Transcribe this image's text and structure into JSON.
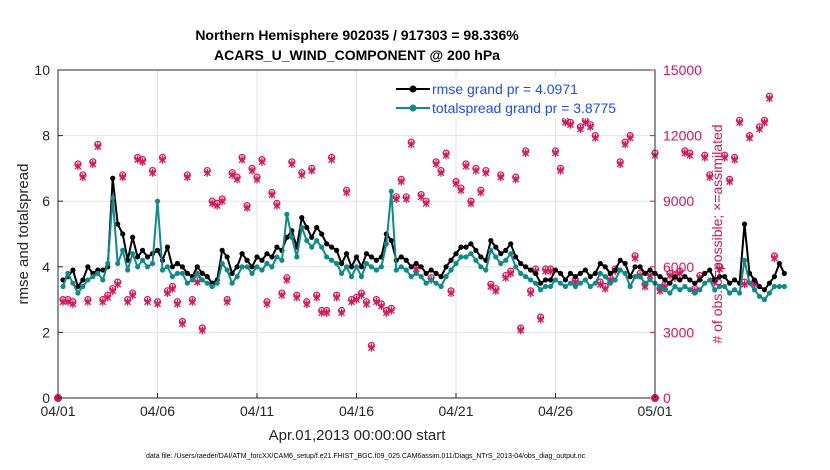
{
  "chart_data": {
    "type": "line",
    "title_line1": "Northern Hemisphere 902035 / 917303 = 98.336%",
    "title_line2": "ACARS_U_WIND_COMPONENT @ 200 hPa",
    "xlabel": "Apr.01,2013 00:00:00 start",
    "ylabel_left": "rmse and totalspread",
    "ylabel_right": "# of obs: o=possible; ×=assimilated",
    "footer": "data file: /Users/raeder/DAI/ATM_forcXX/CAM6_setup/f.e21.FHIST_BGC.f09_025.CAM6assim.011/Diags_NTrS_2013-04/obs_diag_output.nc",
    "xlim": [
      0,
      30
    ],
    "ylim_left": [
      0,
      10
    ],
    "ylim_right": [
      0,
      15000
    ],
    "x_ticks": [
      0,
      5,
      10,
      15,
      20,
      25,
      30
    ],
    "x_tick_labels": [
      "04/01",
      "04/06",
      "04/11",
      "04/16",
      "04/21",
      "04/26",
      "05/01"
    ],
    "y_left_ticks": [
      "0",
      "2",
      "4",
      "6",
      "8",
      "10"
    ],
    "y_left_tick_values": [
      0,
      2,
      4,
      6,
      8,
      10
    ],
    "y_right_ticks": [
      "0",
      "3000",
      "6000",
      "9000",
      "12000",
      "15000"
    ],
    "y_right_tick_values": [
      0,
      3000,
      6000,
      9000,
      12000,
      15000
    ],
    "legend": [
      {
        "name": "rmse grand pr = 4.0971",
        "color": "#000000"
      },
      {
        "name": "totalspread grand pr = 3.8775",
        "color": "#0f8a8a"
      }
    ],
    "x_step_days": 0.25,
    "x_start_day": 0.25,
    "series": [
      {
        "name": "rmse",
        "color": "#000000",
        "axis": "left",
        "values": [
          3.6,
          3.7,
          3.9,
          3.4,
          3.6,
          4.0,
          3.8,
          3.9,
          3.9,
          4.0,
          6.7,
          5.3,
          5.0,
          4.2,
          4.9,
          4.3,
          4.5,
          4.3,
          4.4,
          4.5,
          4.2,
          4.6,
          4.0,
          4.1,
          4.0,
          3.8,
          3.7,
          4.0,
          3.8,
          3.7,
          3.5,
          3.6,
          4.5,
          4.3,
          3.8,
          4.0,
          4.4,
          4.2,
          4.0,
          4.3,
          4.2,
          4.4,
          4.3,
          4.6,
          4.5,
          4.9,
          5.1,
          4.6,
          5.5,
          5.2,
          4.9,
          5.2,
          5.0,
          4.7,
          4.6,
          4.5,
          4.1,
          4.4,
          4.0,
          4.3,
          4.0,
          4.4,
          4.3,
          4.2,
          4.3,
          5.0,
          4.8,
          4.2,
          4.3,
          4.2,
          4.0,
          4.1,
          4.0,
          3.8,
          3.9,
          3.8,
          3.7,
          4.0,
          4.2,
          4.4,
          4.6,
          4.6,
          4.7,
          4.5,
          4.3,
          4.2,
          4.8,
          4.6,
          4.4,
          4.5,
          4.7,
          4.3,
          4.1,
          4.0,
          3.9,
          3.8,
          3.5,
          3.6,
          3.6,
          3.9,
          3.8,
          3.6,
          3.8,
          3.7,
          3.8,
          3.9,
          3.7,
          3.8,
          4.1,
          4.0,
          3.8,
          3.9,
          4.2,
          4.1,
          3.7,
          4.0,
          4.0,
          3.8,
          3.9,
          3.8,
          3.7,
          3.6,
          3.5,
          3.7,
          3.6,
          3.7,
          3.6,
          3.5,
          3.6,
          3.8,
          3.9,
          3.6,
          3.7,
          3.7,
          3.5,
          3.6,
          3.5,
          5.3,
          3.8,
          3.6,
          3.4,
          3.3,
          3.5,
          3.7,
          4.1,
          3.8
        ]
      },
      {
        "name": "totalspread",
        "color": "#0f8a8a",
        "axis": "left",
        "values": [
          3.4,
          3.8,
          3.5,
          3.2,
          3.4,
          3.6,
          3.7,
          3.8,
          3.6,
          4.1,
          6.1,
          4.1,
          4.5,
          3.9,
          4.4,
          4.0,
          4.2,
          4.0,
          4.1,
          6.0,
          3.9,
          4.0,
          3.7,
          3.8,
          3.8,
          3.5,
          3.6,
          3.8,
          3.6,
          3.5,
          3.4,
          3.5,
          4.1,
          3.9,
          3.5,
          3.7,
          4.0,
          4.0,
          3.8,
          4.0,
          3.9,
          4.1,
          4.0,
          4.3,
          4.2,
          5.6,
          4.9,
          4.3,
          5.2,
          4.8,
          4.6,
          4.8,
          4.6,
          4.3,
          4.2,
          4.1,
          3.8,
          4.0,
          3.7,
          4.0,
          3.7,
          4.1,
          4.0,
          3.9,
          4.0,
          4.7,
          6.3,
          3.9,
          4.0,
          3.9,
          3.7,
          3.8,
          3.7,
          3.5,
          3.6,
          3.5,
          3.4,
          3.7,
          3.9,
          4.1,
          4.3,
          4.3,
          4.4,
          4.2,
          4.0,
          3.9,
          4.5,
          4.3,
          4.1,
          4.2,
          4.4,
          4.0,
          3.8,
          3.7,
          3.6,
          3.5,
          3.3,
          3.4,
          3.4,
          3.6,
          3.5,
          3.4,
          3.5,
          3.4,
          3.5,
          3.6,
          3.4,
          3.5,
          3.8,
          3.7,
          3.5,
          3.6,
          3.9,
          3.8,
          3.4,
          3.7,
          3.7,
          3.5,
          3.6,
          3.5,
          3.4,
          3.3,
          3.2,
          3.4,
          3.3,
          3.4,
          3.3,
          3.2,
          3.3,
          3.5,
          3.6,
          3.3,
          3.4,
          3.4,
          3.2,
          3.3,
          3.2,
          4.2,
          3.5,
          3.3,
          3.1,
          3.0,
          3.2,
          3.4,
          3.4,
          3.4
        ]
      },
      {
        "name": "possible obs",
        "color": "#d4145a",
        "axis": "right",
        "marker": "o",
        "values": [
          4500,
          4500,
          4400,
          10700,
          10200,
          4500,
          10800,
          11600,
          4500,
          4700,
          5000,
          5300,
          10200,
          4500,
          4800,
          11000,
          10900,
          4500,
          10400,
          4400,
          11000,
          4900,
          5100,
          4400,
          3500,
          10200,
          4500,
          5400,
          3200,
          10400,
          9000,
          8900,
          9100,
          4500,
          10300,
          10100,
          11000,
          8800,
          10500,
          10100,
          10900,
          4400,
          9400,
          8900,
          4800,
          5500,
          10800,
          4700,
          10300,
          4400,
          10500,
          4700,
          4000,
          4000,
          11000,
          4700,
          4000,
          9500,
          4500,
          4600,
          4800,
          4400,
          2400,
          4500,
          4300,
          4000,
          4100,
          9200,
          10000,
          9200,
          11700,
          6000,
          9300,
          9000,
          5500,
          10800,
          10400,
          11200,
          4900,
          9900,
          9600,
          10700,
          9000,
          10500,
          9500,
          10400,
          5200,
          5000,
          10200,
          5600,
          5800,
          10100,
          3200,
          11300,
          4900,
          5900,
          3700,
          5900,
          5900,
          11300,
          10500,
          12700,
          12600,
          5400,
          12400,
          12700,
          12500,
          12000,
          5300,
          5100,
          5500,
          5900,
          10800,
          11700,
          12000,
          6500,
          5700,
          5200,
          5700,
          11200,
          5000,
          5200,
          5700,
          5600,
          5800,
          11300,
          11200,
          5000,
          5600,
          11100,
          10200,
          5400,
          6000,
          11100,
          10000,
          11000,
          12700,
          5300,
          12000,
          5300,
          12400,
          12700,
          13800,
          6500
        ]
      },
      {
        "name": "assimilated obs",
        "color": "#d4145a",
        "axis": "right",
        "marker": "x",
        "values": [
          4400,
          4400,
          4300,
          10600,
          10100,
          4400,
          10700,
          11500,
          4400,
          4600,
          4900,
          5200,
          10100,
          4400,
          4700,
          10900,
          10800,
          4400,
          10300,
          4300,
          10900,
          4800,
          5000,
          4300,
          3400,
          10100,
          4400,
          5300,
          3100,
          10300,
          8900,
          8800,
          9000,
          4400,
          10200,
          10000,
          10900,
          8700,
          10400,
          10000,
          10800,
          4300,
          9300,
          8800,
          4700,
          5400,
          10700,
          4600,
          10200,
          4300,
          10400,
          4600,
          3900,
          3900,
          10900,
          4600,
          3900,
          9400,
          4400,
          4500,
          4700,
          4300,
          2300,
          4400,
          4200,
          3900,
          4000,
          9100,
          9900,
          9100,
          11600,
          5900,
          9200,
          8900,
          5400,
          10700,
          10300,
          11100,
          4800,
          9800,
          9500,
          10600,
          8900,
          10400,
          9400,
          10300,
          5100,
          4900,
          10100,
          5500,
          5700,
          10000,
          3100,
          11200,
          4800,
          5800,
          3600,
          5800,
          5800,
          11200,
          10400,
          12600,
          12500,
          5300,
          12300,
          12600,
          12400,
          11900,
          5200,
          5000,
          5400,
          5800,
          10700,
          11600,
          11900,
          6400,
          5600,
          5100,
          5600,
          11100,
          4900,
          5100,
          5600,
          5500,
          5700,
          11200,
          11100,
          4900,
          5500,
          11000,
          10100,
          5300,
          5900,
          11000,
          9900,
          10900,
          12600,
          5200,
          11900,
          5200,
          12300,
          12600,
          13700,
          6400
        ]
      }
    ]
  }
}
